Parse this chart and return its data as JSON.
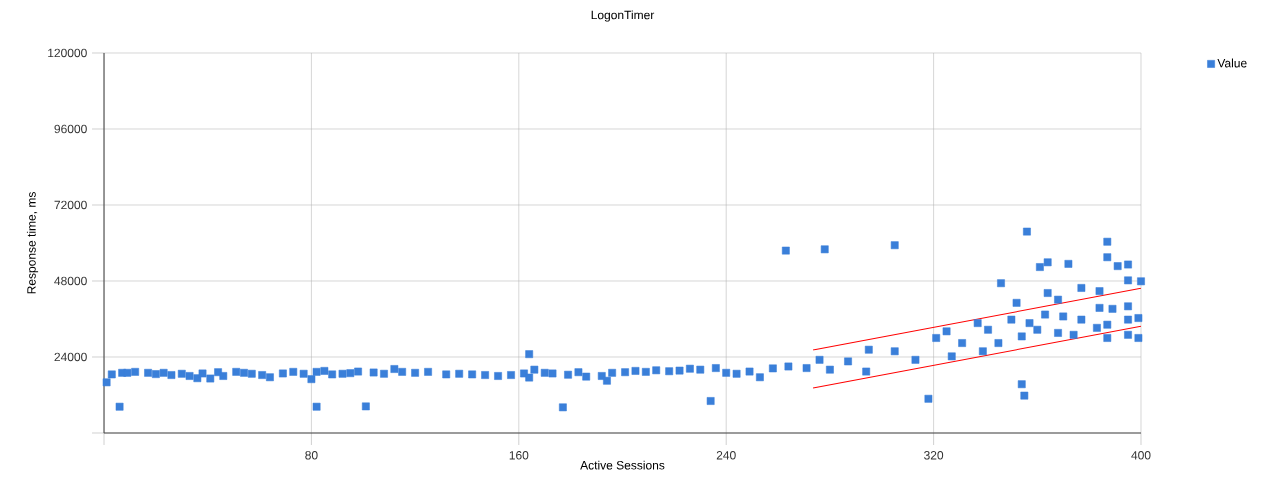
{
  "chart_data": {
    "type": "scatter",
    "title": "LogonTimer",
    "xlabel": "Active Sessions",
    "ylabel": "Response time, ms",
    "xlim": [
      0,
      400
    ],
    "xticks": [
      {
        "value": 0,
        "label": null
      },
      80,
      160,
      240,
      320,
      400
    ],
    "ylim": [
      0,
      120000
    ],
    "yticks": [
      {
        "value": 0,
        "label": null
      },
      24000,
      48000,
      72000,
      96000,
      120000
    ],
    "grid": true,
    "legend": "top right",
    "series": [
      {
        "name": "Value",
        "color": "#3a7fd9",
        "marker": "square",
        "x": [
          1,
          3,
          6,
          7,
          9,
          12,
          17,
          20,
          23,
          26,
          30,
          33,
          36,
          38,
          41,
          44,
          46,
          51,
          54,
          57,
          61,
          64,
          69,
          73,
          77,
          80,
          82,
          82,
          85,
          88,
          92,
          95,
          98,
          101,
          104,
          108,
          112,
          115,
          120,
          125,
          132,
          137,
          142,
          147,
          152,
          157,
          162,
          164,
          164,
          166,
          170,
          173,
          177,
          179,
          183,
          186,
          192,
          194,
          196,
          201,
          205,
          209,
          213,
          218,
          222,
          226,
          230,
          234,
          236,
          240,
          244,
          249,
          253,
          258,
          263,
          264,
          271,
          276,
          278,
          280,
          287,
          294,
          295,
          305,
          305,
          313,
          318,
          321,
          325,
          327,
          331,
          337,
          339,
          341,
          345,
          346,
          350,
          352,
          354,
          354,
          355,
          356,
          357,
          360,
          361,
          363,
          364,
          364,
          368,
          368,
          370,
          372,
          374,
          377,
          377,
          383,
          384,
          384,
          387,
          387,
          387,
          387,
          389,
          391,
          395,
          395,
          395,
          395,
          395,
          399,
          399,
          400
        ],
        "values": [
          16000,
          18500,
          8300,
          19000,
          19000,
          19300,
          19000,
          18600,
          19000,
          18300,
          18700,
          18000,
          17300,
          18800,
          17200,
          19200,
          18000,
          19300,
          19000,
          18700,
          18300,
          17600,
          18800,
          19300,
          18700,
          17000,
          8300,
          19300,
          19600,
          18500,
          18700,
          18900,
          19400,
          8400,
          19100,
          18700,
          20200,
          19300,
          19000,
          19300,
          18500,
          18700,
          18500,
          18300,
          18000,
          18300,
          18800,
          24900,
          17500,
          20000,
          19000,
          18800,
          8100,
          18400,
          19200,
          17800,
          18000,
          16500,
          19000,
          19200,
          19600,
          19300,
          19800,
          19500,
          19700,
          20300,
          20000,
          10100,
          20500,
          19000,
          18700,
          19400,
          17600,
          20400,
          57600,
          21000,
          20500,
          23100,
          58000,
          20000,
          22600,
          19400,
          26300,
          59300,
          25800,
          23100,
          10800,
          30000,
          32100,
          24200,
          28400,
          34700,
          25800,
          32600,
          28400,
          47300,
          35800,
          41100,
          30500,
          15400,
          11800,
          63600,
          34700,
          32600,
          52400,
          37400,
          44200,
          53900,
          42100,
          31600,
          36800,
          53400,
          31000,
          45800,
          35800,
          33200,
          44800,
          39500,
          60400,
          55500,
          34200,
          30000,
          39200,
          52700,
          53200,
          48200,
          40000,
          35800,
          31000,
          36300,
          30000,
          47900
        ]
      },
      {
        "type": "line",
        "color": "#ff0000",
        "marker": "none",
        "x": [
          273.5,
          400
        ],
        "values": [
          26200,
          45700
        ]
      },
      {
        "type": "line",
        "color": "#ff0000",
        "marker": "none",
        "x": [
          273.5,
          400
        ],
        "values": [
          14200,
          33700
        ]
      }
    ]
  }
}
